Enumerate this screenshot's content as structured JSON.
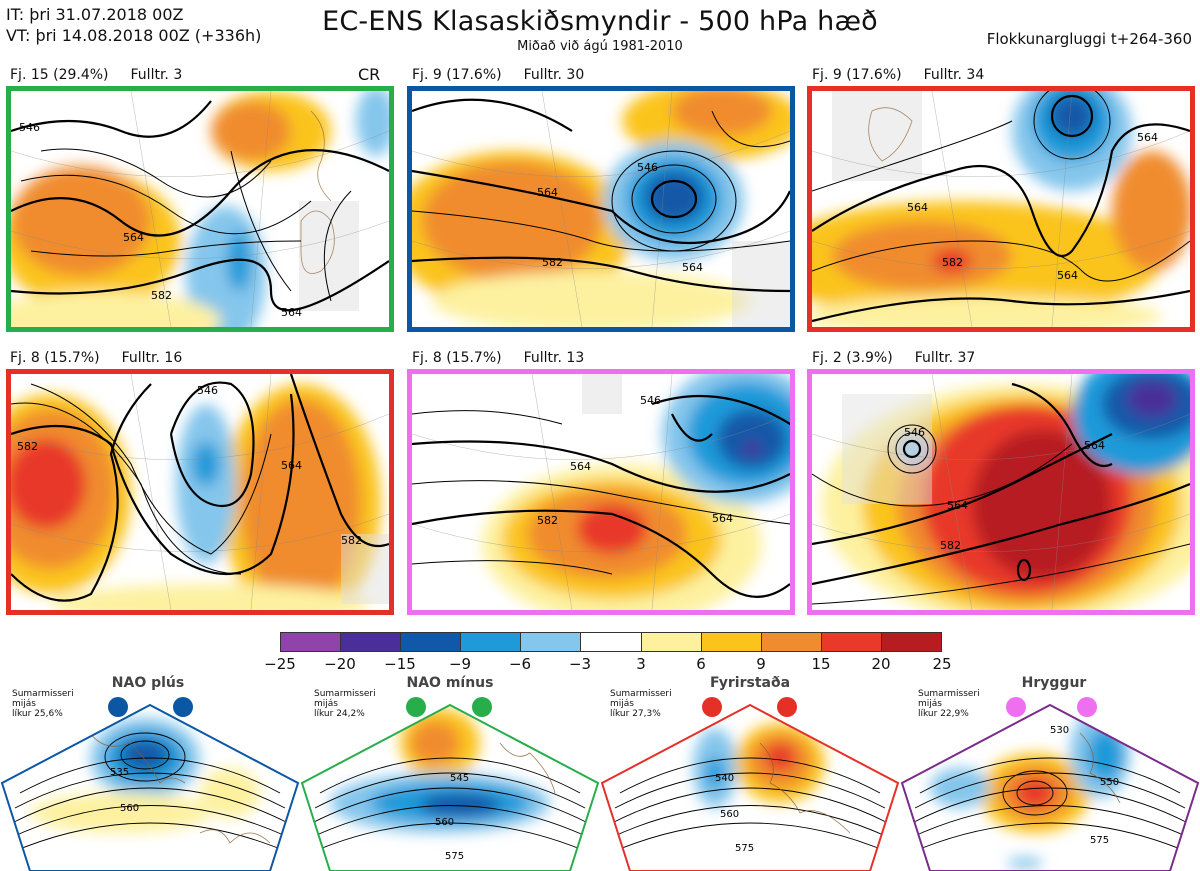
{
  "header": {
    "issue_time": "IT: þri 31.07.2018 00Z",
    "valid_time": "VT: þri 14.08.2018 00Z  (+336h)",
    "title": "EC-ENS Klasaskiðsmyndir - 500 hPa hæð",
    "subtitle": "Miðað við ágú 1981-2010",
    "window": "Flokkunargluggi t+264-360"
  },
  "cr_label": "CR",
  "panels": [
    {
      "count": "Fj. 15 (29.4%)",
      "rep": "Fulltr. 3",
      "border": "#27ae4a",
      "contours": [
        "546",
        "564",
        "582",
        "564"
      ]
    },
    {
      "count": "Fj. 9 (17.6%)",
      "rep": "Fulltr. 30",
      "border": "#0b57a4",
      "contours": [
        "546",
        "564",
        "582",
        "564"
      ]
    },
    {
      "count": "Fj. 9 (17.6%)",
      "rep": "Fulltr. 34",
      "border": "#e53028",
      "contours": [
        "564",
        "582",
        "564",
        "564"
      ]
    },
    {
      "count": "Fj. 8 (15.7%)",
      "rep": "Fulltr. 16",
      "border": "#e53028",
      "contours": [
        "546",
        "582",
        "564",
        "582"
      ]
    },
    {
      "count": "Fj. 8 (15.7%)",
      "rep": "Fulltr. 13",
      "border": "#ee6ff0",
      "contours": [
        "546",
        "564",
        "582",
        "564"
      ]
    },
    {
      "count": "Fj. 2 (3.9%)",
      "rep": "Fulltr. 37",
      "border": "#ee6ff0",
      "contours": [
        "546",
        "564",
        "582",
        "564"
      ]
    }
  ],
  "colorbar": {
    "colors": [
      "#8e44a8",
      "#4a2e9a",
      "#1258a8",
      "#1e9ad9",
      "#85c6ec",
      "#ffffff",
      "#fdf1a0",
      "#fbc41d",
      "#f08c2e",
      "#e8392b",
      "#b71c20"
    ],
    "ticks": [
      "−25",
      "−20",
      "−15",
      "−9",
      "−6",
      "−3",
      "3",
      "6",
      "9",
      "15",
      "20",
      "25"
    ]
  },
  "regimes": [
    {
      "name": "NAO plús",
      "season": "Sumarmisseri",
      "type": "mijás",
      "freq": "líkur 25,6%",
      "dot": "#0b57a4",
      "outline": "#0b57a4",
      "contours": [
        "535",
        "560"
      ]
    },
    {
      "name": "NAO mínus",
      "season": "Sumarmisseri",
      "type": "mijás",
      "freq": "líkur 24,2%",
      "dot": "#27ae4a",
      "outline": "#27ae4a",
      "contours": [
        "545",
        "560",
        "575"
      ]
    },
    {
      "name": "Fyrirstaða",
      "season": "Sumarmisseri",
      "type": "mijás",
      "freq": "líkur 27,3%",
      "dot": "#e53028",
      "outline": "#e53028",
      "contours": [
        "540",
        "560",
        "575"
      ]
    },
    {
      "name": "Hryggur",
      "season": "Sumarmisseri",
      "type": "mijás",
      "freq": "líkur 22,9%",
      "dot": "#ee6ff0",
      "outline": "#7a2a8c",
      "contours": [
        "530",
        "550",
        "575"
      ]
    }
  ]
}
